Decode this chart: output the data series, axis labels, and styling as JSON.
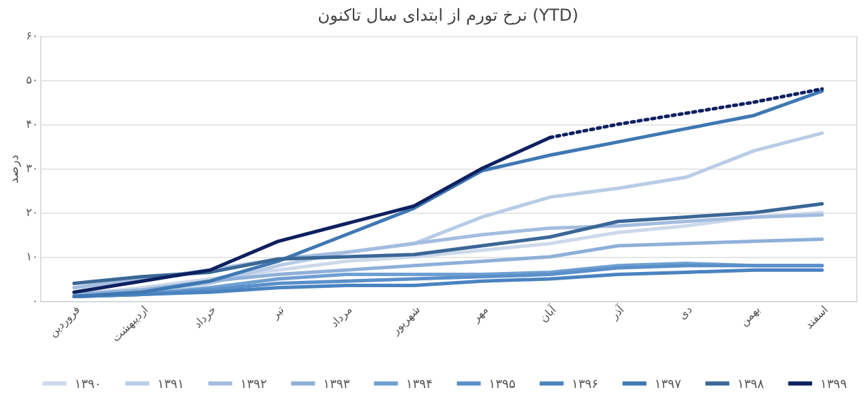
{
  "chart_data": {
    "type": "line",
    "title": "نرخ تورم از ابتدای سال تاکنون (YTD)",
    "ylabel": "درصد",
    "categories": [
      "فروردین",
      "اردیبهشت",
      "خرداد",
      "تیر",
      "مرداد",
      "شهریور",
      "مهر",
      "آبان",
      "آذر",
      "دی",
      "بهمن",
      "اسفند"
    ],
    "ylim": [
      0,
      60
    ],
    "yticks": [
      {
        "value": 0,
        "label": "۰"
      },
      {
        "value": 10,
        "label": "۱۰"
      },
      {
        "value": 20,
        "label": "۲۰"
      },
      {
        "value": 30,
        "label": "۳۰"
      },
      {
        "value": 40,
        "label": "۴۰"
      },
      {
        "value": 50,
        "label": "۵۰"
      },
      {
        "value": 60,
        "label": "۶۰"
      }
    ],
    "grid": "y",
    "legend": "bottom",
    "line_style": "solid",
    "series": [
      {
        "name": "۱۳۹۰",
        "color": "#cdd9ea",
        "values": [
          1.5,
          3,
          5,
          7,
          9,
          10,
          11.5,
          13,
          15.5,
          17,
          19,
          20
        ]
      },
      {
        "name": "۱۳۹۱",
        "color": "#b8cce6",
        "values": [
          1,
          2,
          4,
          8,
          11,
          13,
          19,
          23.5,
          25.5,
          28,
          34,
          38
        ]
      },
      {
        "name": "۱۳۹۲",
        "color": "#a3bde0",
        "values": [
          3,
          5,
          7,
          9.5,
          11,
          13,
          15,
          16.5,
          17,
          18,
          19,
          19.5
        ]
      },
      {
        "name": "۱۳۹۳",
        "color": "#8eb0d9",
        "values": [
          1.5,
          2.5,
          4.5,
          6,
          7,
          8,
          9,
          10,
          12.5,
          13,
          13.5,
          14
        ]
      },
      {
        "name": "۱۳۹۴",
        "color": "#6f9fd2",
        "values": [
          1,
          1.5,
          3,
          5,
          6,
          6,
          6,
          6.5,
          8,
          8.5,
          8,
          8
        ]
      },
      {
        "name": "۱۳۹۵",
        "color": "#5a8fc9",
        "values": [
          1,
          1.5,
          2.5,
          4,
          4.5,
          5,
          5.5,
          6,
          7.5,
          8,
          8,
          8
        ]
      },
      {
        "name": "۱۳۹۶",
        "color": "#4a83c0",
        "values": [
          1,
          1.5,
          2,
          3,
          3.5,
          3.5,
          4.5,
          5,
          6,
          6.5,
          7,
          7
        ]
      },
      {
        "name": "۱۳۹۷",
        "color": "#3f78b3",
        "values": [
          1,
          2,
          4.5,
          9,
          15,
          21,
          29.5,
          33,
          36,
          39,
          42,
          47.5
        ]
      },
      {
        "name": "۱۳۹۸",
        "color": "#3a6796",
        "values": [
          4,
          5.5,
          6.5,
          9.5,
          10,
          10.5,
          12.5,
          14.5,
          18,
          19,
          20,
          22
        ]
      },
      {
        "name": "۱۳۹۹",
        "color": "#0d2060",
        "values": [
          2,
          4.5,
          7,
          13.5,
          17.5,
          21.5,
          30,
          37,
          null,
          null,
          null,
          null
        ]
      },
      {
        "color": "#0d2060",
        "line_style": "dotted",
        "values": [
          null,
          null,
          null,
          null,
          null,
          null,
          null,
          37,
          40,
          42.5,
          45,
          48
        ]
      }
    ]
  }
}
